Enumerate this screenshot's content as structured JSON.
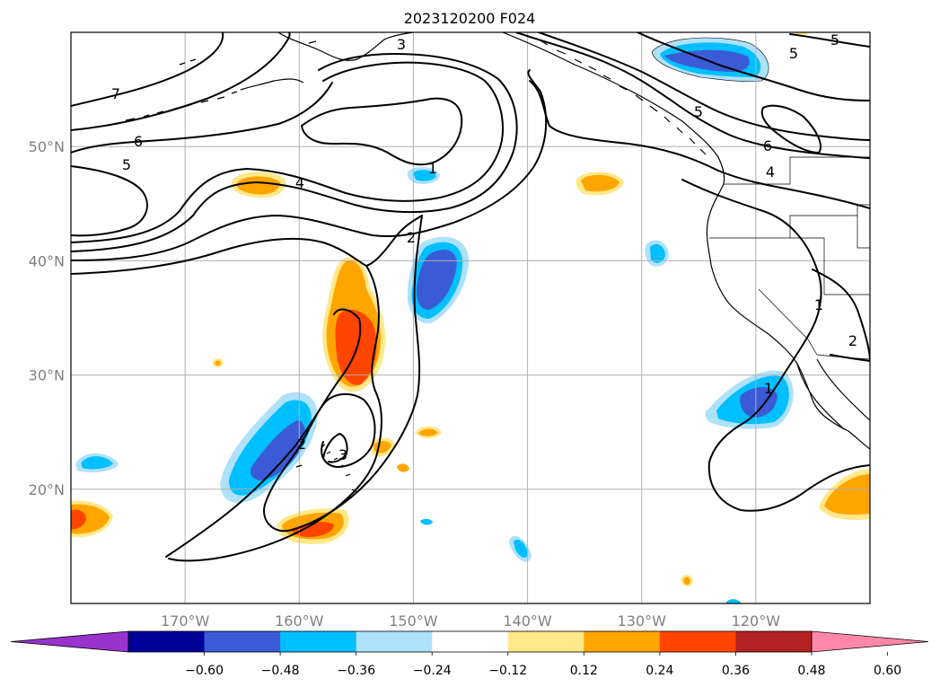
{
  "title": "2023120200 F024",
  "map": {
    "extent": {
      "lon_min": -180,
      "lon_max": -110,
      "lat_min": 10,
      "lat_max": 60
    },
    "lon_ticks": [
      {
        "lon": -170,
        "label": "170°W"
      },
      {
        "lon": -160,
        "label": "160°W"
      },
      {
        "lon": -150,
        "label": "150°W"
      },
      {
        "lon": -140,
        "label": "140°W"
      },
      {
        "lon": -130,
        "label": "130°W"
      },
      {
        "lon": -120,
        "label": "120°W"
      }
    ],
    "lat_ticks": [
      {
        "lat": 20,
        "label": "20°N"
      },
      {
        "lat": 30,
        "label": "30°N"
      },
      {
        "lat": 40,
        "label": "40°N"
      },
      {
        "lat": 50,
        "label": "50°N"
      }
    ],
    "gridlines": true
  },
  "colorbar": {
    "orientation": "horizontal",
    "extend": "both",
    "colors": [
      "#9933cc",
      "#000099",
      "#3b5bd6",
      "#00bfff",
      "#aee1fa",
      "#ffffff",
      "#ffe88a",
      "#ffa500",
      "#ff4500",
      "#b22222",
      "#ff88aa"
    ],
    "tick_labels": [
      "−0.60",
      "−0.48",
      "−0.36",
      "−0.24",
      "−0.12",
      "0.12",
      "0.24",
      "0.36",
      "0.48",
      "0.60"
    ]
  },
  "contour_labels": [
    {
      "id": "c7a",
      "text": "7"
    },
    {
      "id": "c6a",
      "text": "6"
    },
    {
      "id": "c5a",
      "text": "5"
    },
    {
      "id": "c4a",
      "text": "4"
    },
    {
      "id": "c3a",
      "text": "3"
    },
    {
      "id": "c2a",
      "text": "2"
    },
    {
      "id": "c1a",
      "text": "1"
    },
    {
      "id": "c5b",
      "text": "5"
    },
    {
      "id": "c5c",
      "text": "5"
    },
    {
      "id": "c5d",
      "text": "5"
    },
    {
      "id": "c6b",
      "text": "6"
    },
    {
      "id": "c4b",
      "text": "4"
    },
    {
      "id": "c1b",
      "text": "1"
    },
    {
      "id": "c1c",
      "text": "1"
    },
    {
      "id": "c2b",
      "text": "2"
    },
    {
      "id": "c2c",
      "text": "2"
    },
    {
      "id": "c3b",
      "text": "3"
    }
  ]
}
